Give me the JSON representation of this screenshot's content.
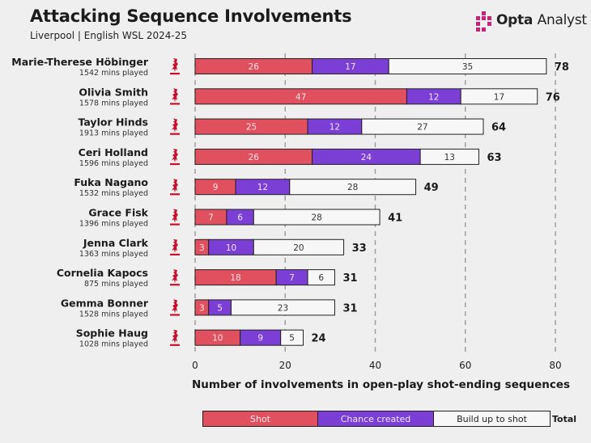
{
  "header": {
    "title": "Attacking Sequence Involvements",
    "subtitle": "Liverpool | English WSL 2024-25",
    "brand_strong": "Opta",
    "brand_light": "Analyst"
  },
  "colors": {
    "shot": "#e0505f",
    "chance_created": "#7b3fd6",
    "build_up": "#f7f7f7",
    "crest": "#c8102e",
    "grid": "#9a9a9a"
  },
  "chart_data": {
    "type": "bar",
    "orientation": "horizontal",
    "stacked": true,
    "xlabel": "Number of involvements in open-play shot-ending sequences",
    "xlim": [
      0,
      80
    ],
    "xticks": [
      0,
      20,
      40,
      60,
      80
    ],
    "grid": "vertical dashed",
    "players": [
      {
        "name": "Marie-Therese Höbinger",
        "mins": "1542 mins played",
        "total": 78
      },
      {
        "name": "Olivia Smith",
        "mins": "1578 mins played",
        "total": 76
      },
      {
        "name": "Taylor Hinds",
        "mins": "1913 mins played",
        "total": 64
      },
      {
        "name": "Ceri Holland",
        "mins": "1596 mins played",
        "total": 63
      },
      {
        "name": "Fuka Nagano",
        "mins": "1532 mins played",
        "total": 49
      },
      {
        "name": "Grace Fisk",
        "mins": "1396 mins played",
        "total": 41
      },
      {
        "name": "Jenna Clark",
        "mins": "1363 mins played",
        "total": 33
      },
      {
        "name": "Cornelia Kapocs",
        "mins": "875 mins played",
        "total": 31
      },
      {
        "name": "Gemma Bonner",
        "mins": "1528 mins played",
        "total": 31
      },
      {
        "name": "Sophie Haug",
        "mins": "1028 mins played",
        "total": 24
      }
    ],
    "series": [
      {
        "name": "Shot",
        "values": [
          26,
          47,
          25,
          26,
          9,
          7,
          3,
          18,
          3,
          10
        ]
      },
      {
        "name": "Chance created",
        "values": [
          17,
          12,
          12,
          24,
          12,
          6,
          10,
          7,
          5,
          9
        ]
      },
      {
        "name": "Build up to shot",
        "values": [
          35,
          17,
          27,
          13,
          28,
          28,
          20,
          6,
          23,
          5
        ]
      }
    ],
    "legend": {
      "position": "bottom",
      "items": [
        "Shot",
        "Chance created",
        "Build up to shot"
      ],
      "total_label": "Total"
    }
  }
}
